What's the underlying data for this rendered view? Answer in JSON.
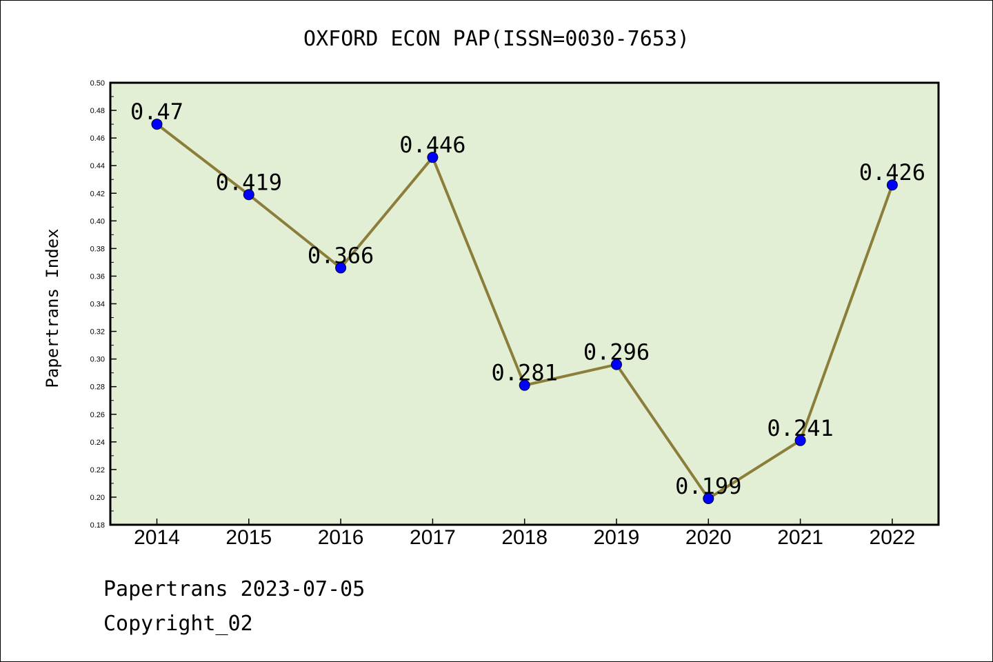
{
  "chart_data": {
    "type": "line",
    "title": "OXFORD ECON PAP(ISSN=0030-7653)",
    "xlabel": "",
    "ylabel": "Papertrans Index",
    "categories": [
      "2014",
      "2015",
      "2016",
      "2017",
      "2018",
      "2019",
      "2020",
      "2021",
      "2022"
    ],
    "values": [
      0.47,
      0.419,
      0.366,
      0.446,
      0.281,
      0.296,
      0.199,
      0.241,
      0.426
    ],
    "data_labels": [
      "0.47",
      "0.419",
      "0.366",
      "0.446",
      "0.281",
      "0.296",
      "0.199",
      "0.241",
      "0.426"
    ],
    "ylim": [
      0.18,
      0.5
    ],
    "yticks": [
      "0.18",
      "0.20",
      "0.22",
      "0.24",
      "0.26",
      "0.28",
      "0.30",
      "0.32",
      "0.34",
      "0.36",
      "0.38",
      "0.40",
      "0.42",
      "0.44",
      "0.46",
      "0.48",
      "0.50"
    ],
    "grid": false,
    "legend": "none",
    "colors": {
      "plot_background": "#e2efd5",
      "line": "#8b7d3a",
      "marker": "#0000ff"
    }
  },
  "footer": {
    "line1": "Papertrans 2023-07-05",
    "line2": "Copyright_02"
  }
}
